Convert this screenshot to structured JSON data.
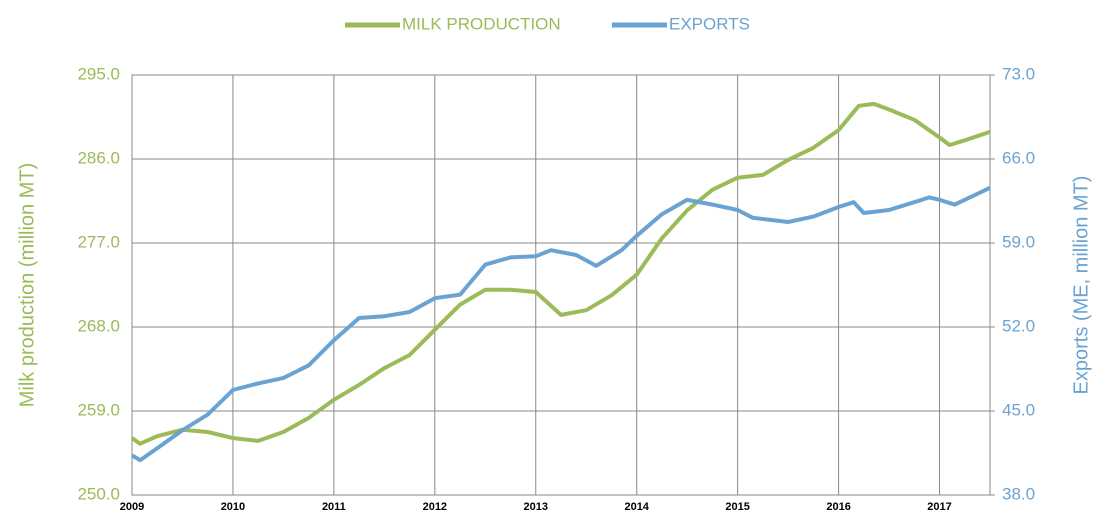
{
  "chart_data": {
    "type": "line",
    "ylabel": "Milk production (million MT)",
    "y2label": "Exports (ME, million MT)",
    "xlim": [
      2009,
      2017.5
    ],
    "xticks": [
      2009,
      2010,
      2011,
      2012,
      2013,
      2014,
      2015,
      2016,
      2017
    ],
    "ylim": [
      250,
      295
    ],
    "yticks": [
      {
        "value": 250,
        "label": "250.0"
      },
      {
        "value": 259,
        "label": "259.0"
      },
      {
        "value": 268,
        "label": "268.0"
      },
      {
        "value": 277,
        "label": "277.0"
      },
      {
        "value": 286,
        "label": "286.0"
      },
      {
        "value": 295,
        "label": "295.0"
      }
    ],
    "y2lim": [
      38,
      73
    ],
    "y2ticks": [
      {
        "value": 38,
        "label": "38.0"
      },
      {
        "value": 45,
        "label": "45.0"
      },
      {
        "value": 52,
        "label": "52.0"
      },
      {
        "value": 59,
        "label": "59.0"
      },
      {
        "value": 66,
        "label": "66.0"
      },
      {
        "value": 73,
        "label": "73.0"
      }
    ],
    "grid": true,
    "legend": "top",
    "series": [
      {
        "name": "MILK PRODUCTION",
        "color": "#9bbb59",
        "x": [
          2009.0,
          2009.08,
          2009.25,
          2009.5,
          2009.75,
          2010.0,
          2010.25,
          2010.5,
          2010.75,
          2011.0,
          2011.25,
          2011.5,
          2011.75,
          2012.0,
          2012.25,
          2012.5,
          2012.75,
          2013.0,
          2013.25,
          2013.5,
          2013.75,
          2014.0,
          2014.25,
          2014.5,
          2014.75,
          2015.0,
          2015.25,
          2015.5,
          2015.75,
          2016.0,
          2016.2,
          2016.35,
          2016.5,
          2016.75,
          2017.0,
          2017.1,
          2017.25,
          2017.5
        ],
        "values": [
          256.1,
          255.5,
          256.3,
          257.0,
          256.75,
          256.1,
          255.8,
          256.75,
          258.25,
          260.2,
          261.8,
          263.6,
          265.0,
          267.7,
          270.4,
          272.0,
          272.0,
          271.75,
          269.3,
          269.8,
          271.4,
          273.6,
          277.5,
          280.5,
          282.7,
          284.0,
          284.3,
          285.9,
          287.2,
          289.1,
          291.7,
          291.9,
          291.3,
          290.2,
          288.3,
          287.5,
          288.0,
          288.9
        ]
      },
      {
        "name": "EXPORTS",
        "color": "#6aa3d2",
        "axis": "y2",
        "x": [
          2009.0,
          2009.08,
          2009.25,
          2009.5,
          2009.75,
          2010.0,
          2010.25,
          2010.5,
          2010.75,
          2011.0,
          2011.25,
          2011.5,
          2011.75,
          2012.0,
          2012.25,
          2012.5,
          2012.75,
          2013.0,
          2013.15,
          2013.4,
          2013.6,
          2013.85,
          2014.0,
          2014.25,
          2014.5,
          2014.75,
          2015.0,
          2015.15,
          2015.5,
          2015.75,
          2016.0,
          2016.15,
          2016.25,
          2016.5,
          2016.75,
          2016.9,
          2017.0,
          2017.15,
          2017.25,
          2017.5
        ],
        "values": [
          41.3,
          40.9,
          41.9,
          43.4,
          44.7,
          46.75,
          47.3,
          47.75,
          48.8,
          50.9,
          52.75,
          52.9,
          53.25,
          54.4,
          54.7,
          57.2,
          57.8,
          57.9,
          58.4,
          58.0,
          57.1,
          58.4,
          59.6,
          61.4,
          62.6,
          62.2,
          61.75,
          61.1,
          60.75,
          61.2,
          62.0,
          62.4,
          61.5,
          61.75,
          62.4,
          62.8,
          62.6,
          62.2,
          62.6,
          63.6
        ]
      }
    ]
  }
}
